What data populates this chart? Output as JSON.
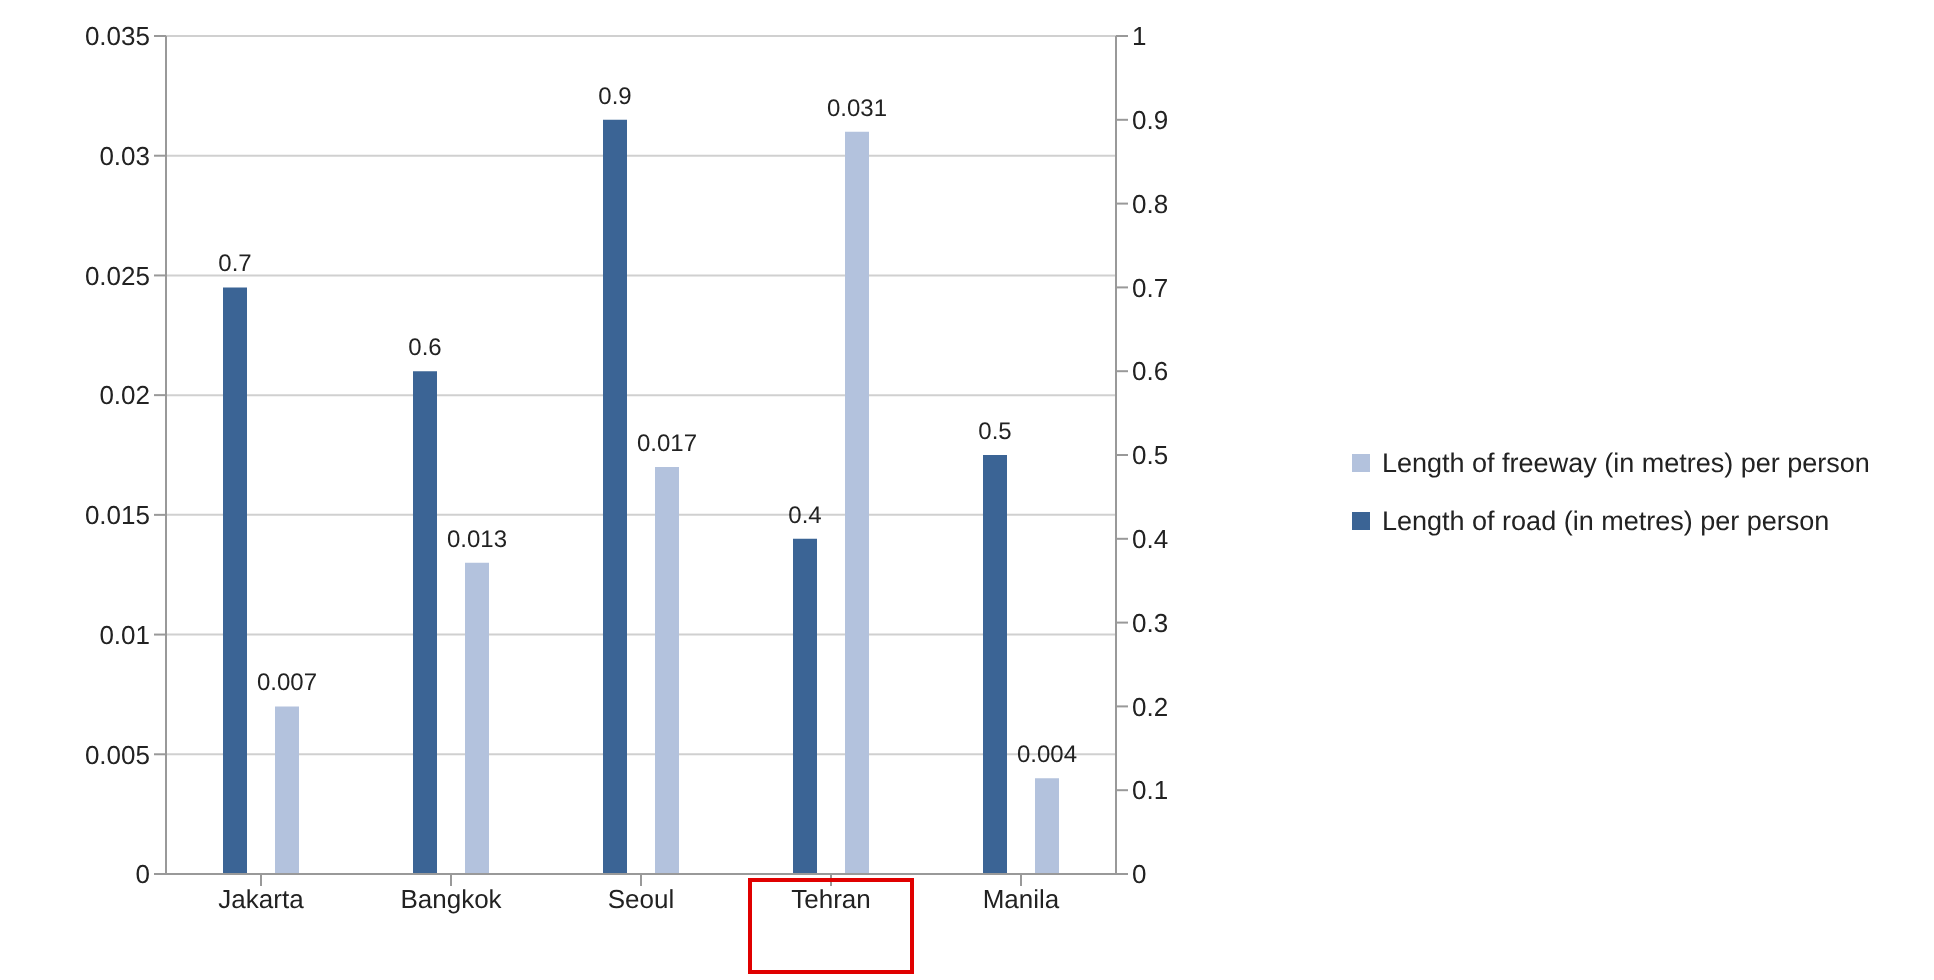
{
  "chart_data": {
    "type": "bar",
    "categories": [
      "Jakarta",
      "Bangkok",
      "Seoul",
      "Tehran",
      "Manila"
    ],
    "series": [
      {
        "name": "Length of road (in metres) per person",
        "color": "#3b6495",
        "values": [
          0.7,
          0.6,
          0.9,
          0.4,
          0.5
        ],
        "axis": "y2"
      },
      {
        "name": "Length of freeway (in metres) per person",
        "color": "#b3c2dd",
        "values": [
          0.007,
          0.013,
          0.017,
          0.031,
          0.004
        ]
      }
    ],
    "ylim": [
      0,
      0.035
    ],
    "yticks": [
      0,
      0.005,
      0.01,
      0.015,
      0.02,
      0.025,
      0.03,
      0.035
    ],
    "y2lim": [
      0,
      1
    ],
    "y2ticks": [
      0,
      0.1,
      0.2,
      0.3,
      0.4,
      0.5,
      0.6,
      0.7,
      0.8,
      0.9,
      1
    ],
    "grid": "y",
    "legend": "right",
    "data_labels": true
  }
}
